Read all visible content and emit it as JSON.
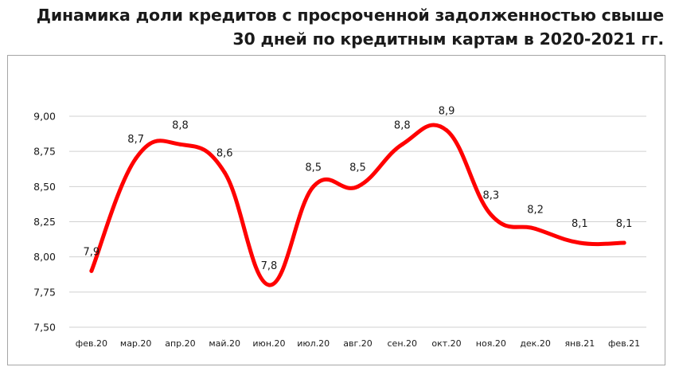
{
  "title_line1": "Динамика доли кредитов с просроченной задолженностью свыше",
  "title_line2": "30 дней по  кредитным картам в 2020-2021 гг.",
  "chart_data": {
    "type": "line",
    "title": "Динамика доли кредитов с просроченной задолженностью свыше 30 дней по кредитным картам в 2020-2021 гг.",
    "categories": [
      "фев.20",
      "мар.20",
      "апр.20",
      "май.20",
      "июн.20",
      "июл.20",
      "авг.20",
      "сен.20",
      "окт.20",
      "ноя.20",
      "дек.20",
      "янв.21",
      "фев.21"
    ],
    "series": [
      {
        "values": [
          7.9,
          8.7,
          8.8,
          8.6,
          7.8,
          8.5,
          8.5,
          8.8,
          8.9,
          8.3,
          8.2,
          8.1,
          8.1
        ],
        "labels": [
          "7,9",
          "8,7",
          "8,8",
          "8,6",
          "7,8",
          "8,5",
          "8,5",
          "8,8",
          "8,9",
          "8,3",
          "8,2",
          "8,1",
          "8,1"
        ],
        "color": "#ff0000"
      }
    ],
    "ylim": [
      7.5,
      9.0
    ],
    "yticks": [
      "7,50",
      "7,75",
      "8,00",
      "8,25",
      "8,50",
      "8,75",
      "9,00"
    ],
    "grid": true,
    "smooth": true,
    "legend": "none",
    "xlabel": "",
    "ylabel": ""
  }
}
